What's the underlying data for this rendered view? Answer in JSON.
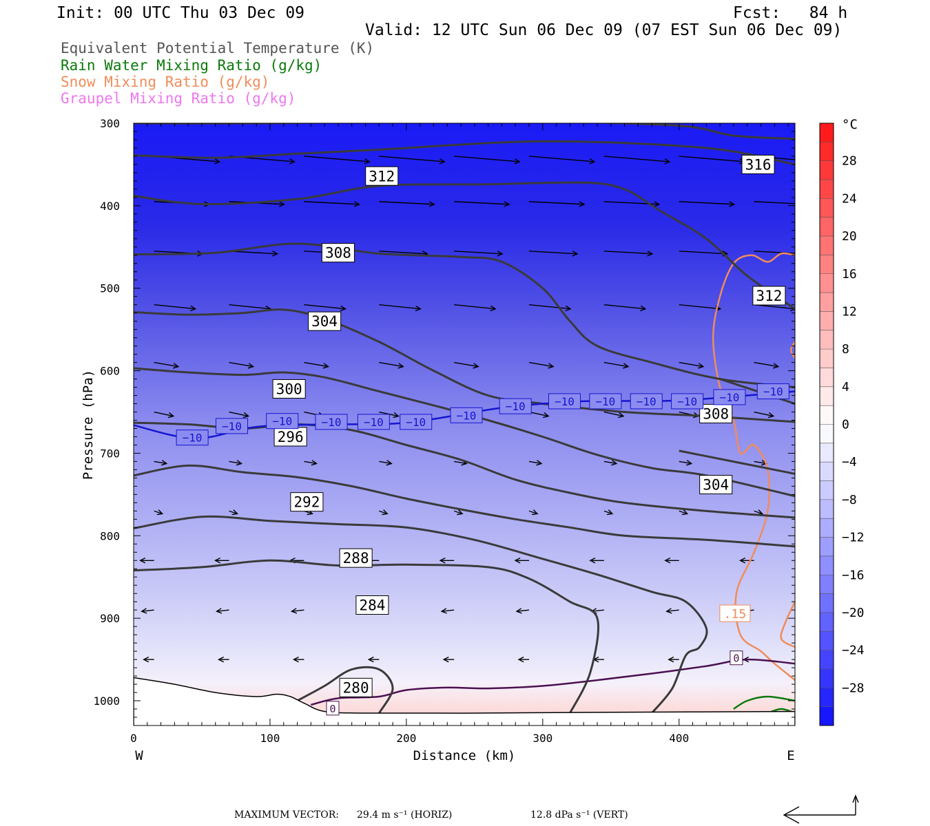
{
  "header": {
    "init": "Init: 00 UTC Thu 03 Dec 09",
    "fcst": "Fcst:   84 h",
    "valid": "Valid: 12 UTC Sun 06 Dec 09 (07 EST Sun 06 Dec 09)"
  },
  "legend": [
    {
      "text": "Equivalent Potential Temperature (K)",
      "color": "#555555"
    },
    {
      "text": "Rain Water Mixing Ratio (g/kg)",
      "color": "#0a7a0a"
    },
    {
      "text": "Snow Mixing Ratio (g/kg)",
      "color": "#f08c5a"
    },
    {
      "text": "Graupel Mixing Ratio (g/kg)",
      "color": "#ee77ee"
    }
  ],
  "chart_data": {
    "type": "cross-section contour",
    "xlabel": "Distance (km)",
    "ylabel": "Pressure (hPa)",
    "xlim": [
      0,
      485
    ],
    "ylim": [
      1030,
      300
    ],
    "x_ticks": [
      0,
      100,
      200,
      300,
      400
    ],
    "y_ticks": [
      300,
      400,
      500,
      600,
      700,
      800,
      900,
      1000
    ],
    "x_end_labels": {
      "left": "W",
      "right": "E"
    },
    "colorbar": {
      "unit": "°C",
      "tick_values": [
        28,
        24,
        20,
        16,
        12,
        8,
        4,
        0,
        -4,
        -8,
        -12,
        -16,
        -20,
        -24,
        -28
      ],
      "tick_labels": [
        "28",
        "24",
        "20",
        "16",
        "12",
        "8",
        "4",
        "0",
        "−4",
        "−8",
        "−12",
        "−16",
        "−20",
        "−24",
        "−28"
      ],
      "range": [
        -32,
        32
      ]
    },
    "theta_e_contours": [
      {
        "label": "316",
        "points": [
          [
            0,
            300
          ],
          [
            100,
            300
          ],
          [
            200,
            298
          ],
          [
            300,
            298
          ],
          [
            400,
            303
          ],
          [
            440,
            315
          ],
          [
            485,
            319
          ]
        ],
        "label_at": [
          458,
          350
        ]
      },
      {
        "label": "312",
        "points": [
          [
            0,
            339
          ],
          [
            60,
            342
          ],
          [
            120,
            337
          ],
          [
            180,
            332
          ],
          [
            300,
            322
          ],
          [
            420,
            330
          ],
          [
            485,
            350
          ]
        ],
        "label_at": [
          182,
          364
        ]
      },
      {
        "label": "312",
        "points": [
          [
            0,
            388
          ],
          [
            50,
            398
          ],
          [
            120,
            392
          ],
          [
            180,
            376
          ],
          [
            260,
            374
          ],
          [
            330,
            372
          ],
          [
            360,
            380
          ],
          [
            385,
            405
          ],
          [
            420,
            440
          ],
          [
            450,
            485
          ],
          [
            485,
            525
          ]
        ],
        "label_at": [
          466,
          509
        ]
      },
      {
        "label": "308",
        "points": [
          [
            0,
            459
          ],
          [
            60,
            457
          ],
          [
            120,
            446
          ],
          [
            180,
            458
          ],
          [
            240,
            462
          ],
          [
            270,
            468
          ],
          [
            300,
            500
          ],
          [
            320,
            540
          ],
          [
            340,
            570
          ],
          [
            380,
            590
          ],
          [
            430,
            610
          ],
          [
            485,
            620
          ]
        ],
        "label_at": [
          150,
          457
        ]
      },
      {
        "label": "308",
        "points": [
          [
            430,
            610
          ],
          [
            485,
            640
          ]
        ],
        "label_at": [
          427,
          652
        ]
      },
      {
        "label": "304",
        "points": [
          [
            0,
            529
          ],
          [
            40,
            532
          ],
          [
            80,
            530
          ],
          [
            110,
            526
          ],
          [
            140,
            537
          ],
          [
            180,
            565
          ],
          [
            220,
            600
          ],
          [
            260,
            630
          ],
          [
            300,
            640
          ],
          [
            360,
            650
          ],
          [
            420,
            655
          ],
          [
            485,
            662
          ]
        ],
        "label_at": [
          140,
          540
        ]
      },
      {
        "label": "304",
        "points": [
          [
            400,
            697
          ],
          [
            485,
            725
          ]
        ],
        "label_at": [
          427,
          738
        ]
      },
      {
        "label": "300",
        "points": [
          [
            0,
            597
          ],
          [
            40,
            602
          ],
          [
            80,
            605
          ],
          [
            110,
            602
          ],
          [
            140,
            608
          ],
          [
            180,
            625
          ],
          [
            220,
            642
          ],
          [
            260,
            660
          ],
          [
            300,
            680
          ],
          [
            340,
            702
          ],
          [
            380,
            718
          ],
          [
            420,
            727
          ],
          [
            485,
            752
          ]
        ],
        "label_at": [
          114,
          622
        ]
      },
      {
        "label": "296",
        "points": [
          [
            0,
            663
          ],
          [
            40,
            665
          ],
          [
            80,
            670
          ],
          [
            120,
            665
          ],
          [
            160,
            672
          ],
          [
            200,
            690
          ],
          [
            240,
            708
          ],
          [
            280,
            732
          ],
          [
            320,
            748
          ],
          [
            360,
            760
          ],
          [
            420,
            770
          ],
          [
            485,
            778
          ]
        ],
        "label_at": [
          115,
          680
        ]
      },
      {
        "label": "292",
        "points": [
          [
            0,
            727
          ],
          [
            40,
            715
          ],
          [
            80,
            723
          ],
          [
            120,
            729
          ],
          [
            160,
            740
          ],
          [
            200,
            755
          ],
          [
            240,
            768
          ],
          [
            280,
            780
          ],
          [
            320,
            790
          ],
          [
            360,
            800
          ],
          [
            420,
            805
          ],
          [
            485,
            813
          ]
        ],
        "label_at": [
          127,
          759
        ]
      },
      {
        "label": "288",
        "points": [
          [
            0,
            791
          ],
          [
            50,
            777
          ],
          [
            100,
            782
          ],
          [
            150,
            786
          ],
          [
            200,
            790
          ],
          [
            250,
            805
          ],
          [
            300,
            828
          ],
          [
            340,
            847
          ],
          [
            380,
            868
          ],
          [
            405,
            880
          ],
          [
            420,
            912
          ],
          [
            415,
            935
          ],
          [
            405,
            945
          ],
          [
            395,
            985
          ],
          [
            380,
            1015
          ]
        ],
        "label_at": [
          163,
          827
        ]
      },
      {
        "label": "284",
        "points": [
          [
            0,
            842
          ],
          [
            50,
            838
          ],
          [
            100,
            830
          ],
          [
            150,
            836
          ],
          [
            200,
            835
          ],
          [
            260,
            838
          ],
          [
            290,
            852
          ],
          [
            320,
            880
          ],
          [
            340,
            900
          ],
          [
            335,
            965
          ],
          [
            320,
            1015
          ]
        ],
        "label_at": [
          175,
          884
        ]
      },
      {
        "label": "280",
        "points": [
          [
            120,
            1000
          ],
          [
            140,
            982
          ],
          [
            160,
            962
          ],
          [
            180,
            962
          ],
          [
            190,
            985
          ],
          [
            180,
            1015
          ]
        ],
        "label_at": [
          163,
          984
        ]
      }
    ],
    "temperature_isotherm": {
      "label": "−10",
      "points": [
        [
          0,
          666
        ],
        [
          45,
          682
        ],
        [
          90,
          668
        ],
        [
          140,
          665
        ],
        [
          200,
          663
        ],
        [
          270,
          645
        ],
        [
          330,
          637
        ],
        [
          400,
          636
        ],
        [
          485,
          625
        ]
      ],
      "label_positions": [
        [
          43,
          681
        ],
        [
          72,
          667
        ],
        [
          109,
          661
        ],
        [
          145,
          662
        ],
        [
          176,
          662
        ],
        [
          207,
          662
        ],
        [
          244,
          654
        ],
        [
          280,
          643
        ],
        [
          316,
          637
        ],
        [
          346,
          637
        ],
        [
          376,
          637
        ],
        [
          406,
          637
        ],
        [
          437,
          632
        ],
        [
          469,
          625
        ]
      ]
    },
    "zero_contour_labels": [
      {
        "label": "0",
        "at": [
          146,
          1009
        ]
      },
      {
        "label": "0",
        "at": [
          442,
          948
        ]
      }
    ],
    "snow_contour_label": {
      "label": ".15",
      "at": [
        441,
        894
      ]
    },
    "max_vector": {
      "label": "MAXIMUM VECTOR:",
      "horiz": "29.4 m s⁻¹ (HORIZ)",
      "vert": "12.8 dPa s⁻¹ (VERT)"
    }
  }
}
